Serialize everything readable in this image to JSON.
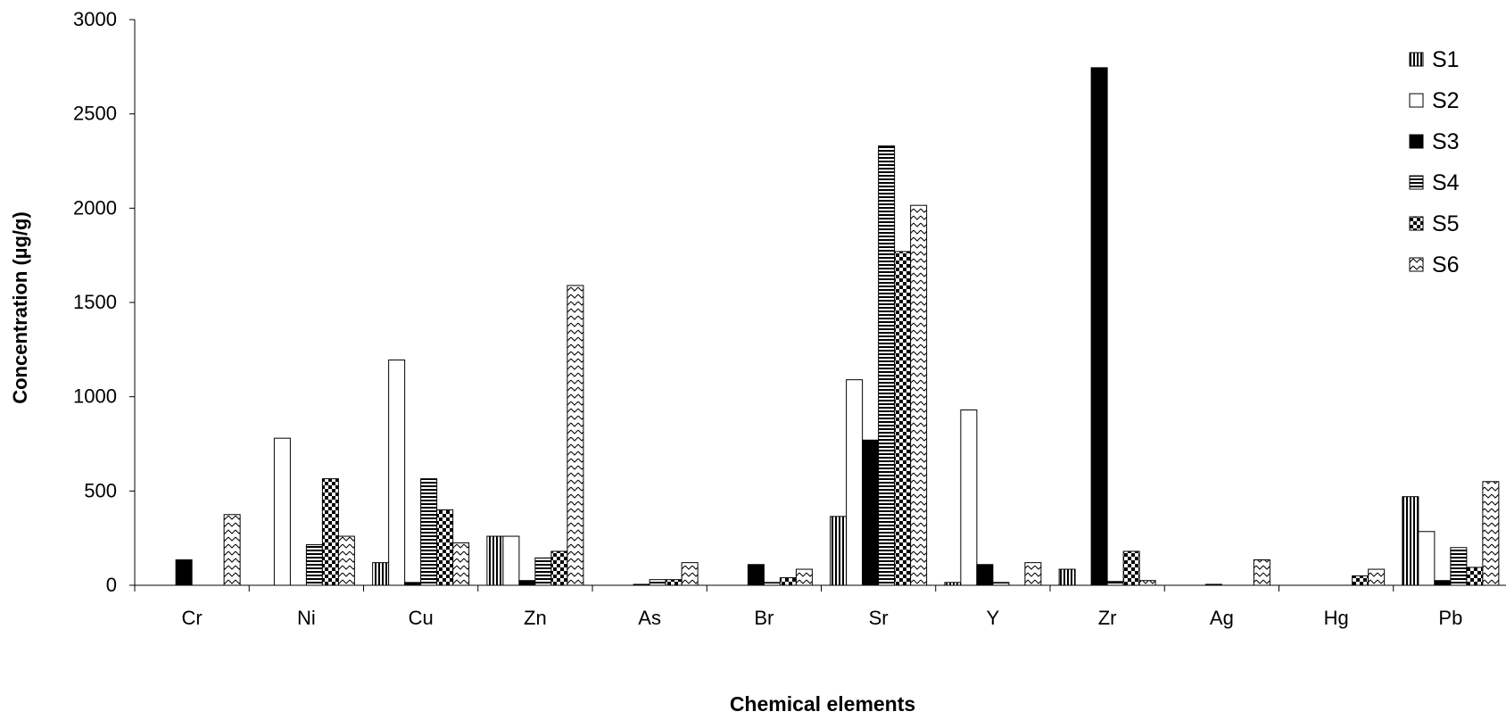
{
  "chart_data": {
    "type": "bar",
    "xlabel": "Chemical elements",
    "ylabel": "Concentration (µg/g)",
    "ylim": [
      0,
      3000
    ],
    "yticks": [
      0,
      500,
      1000,
      1500,
      2000,
      2500,
      3000
    ],
    "grid": false,
    "legend_position": "top-right",
    "categories": [
      "Cr",
      "Ni",
      "Cu",
      "Zn",
      "As",
      "Br",
      "Sr",
      "Y",
      "Zr",
      "Ag",
      "Hg",
      "Pb"
    ],
    "series": [
      {
        "name": "S1",
        "pattern": "vertical-stripes",
        "values": [
          0,
          0,
          120,
          260,
          0,
          0,
          365,
          15,
          85,
          0,
          0,
          470
        ]
      },
      {
        "name": "S2",
        "pattern": "white",
        "values": [
          0,
          780,
          1195,
          260,
          0,
          0,
          1090,
          930,
          0,
          0,
          0,
          285
        ]
      },
      {
        "name": "S3",
        "pattern": "solid-black",
        "values": [
          135,
          0,
          15,
          25,
          5,
          110,
          770,
          110,
          2745,
          5,
          0,
          25
        ]
      },
      {
        "name": "S4",
        "pattern": "horizontal-stripes",
        "values": [
          0,
          215,
          565,
          145,
          30,
          15,
          2330,
          15,
          20,
          0,
          0,
          200
        ]
      },
      {
        "name": "S5",
        "pattern": "checker",
        "values": [
          0,
          565,
          400,
          180,
          30,
          40,
          1770,
          0,
          180,
          0,
          50,
          95
        ]
      },
      {
        "name": "S6",
        "pattern": "zigzag",
        "values": [
          375,
          260,
          225,
          1590,
          120,
          85,
          2015,
          120,
          25,
          135,
          85,
          550
        ]
      }
    ]
  }
}
